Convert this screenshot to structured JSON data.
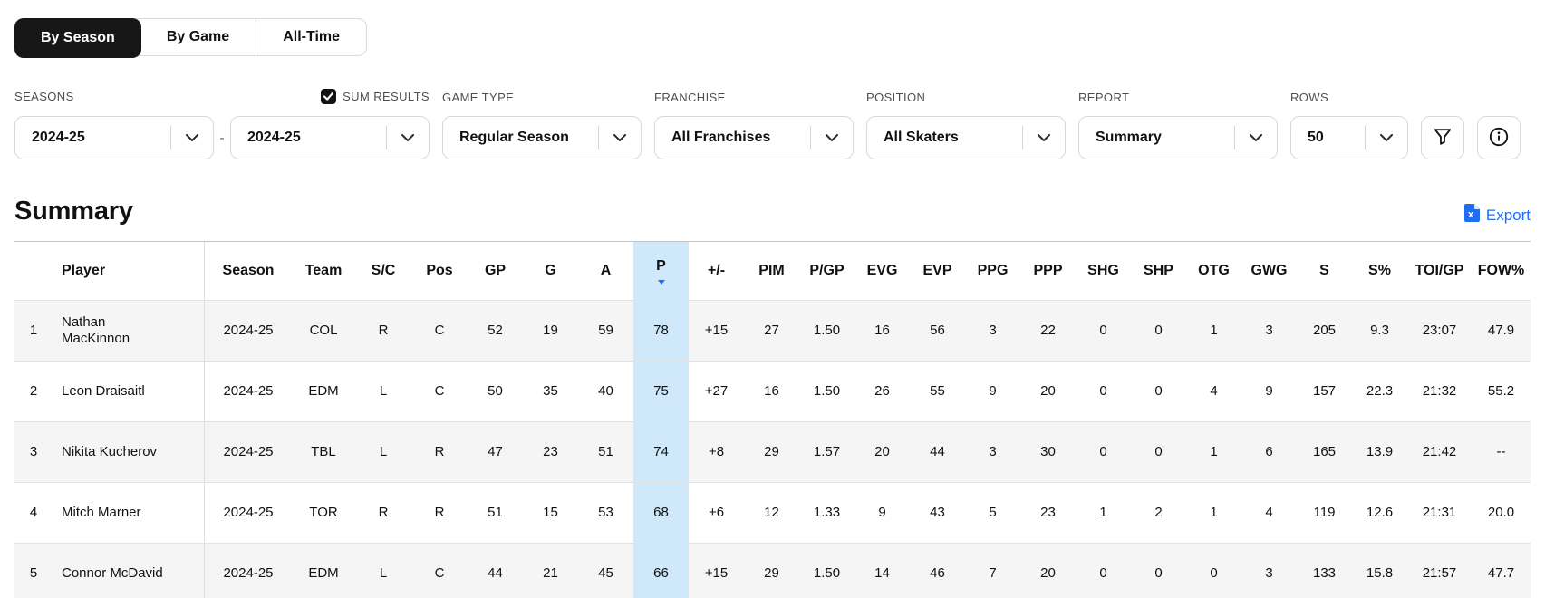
{
  "tabs": [
    {
      "label": "By Season",
      "active": true
    },
    {
      "label": "By Game",
      "active": false
    },
    {
      "label": "All-Time",
      "active": false
    }
  ],
  "filters": {
    "seasons": {
      "label": "SEASONS",
      "from": "2024-25",
      "to": "2024-25",
      "separator": "-"
    },
    "sum_results": {
      "label": "SUM RESULTS",
      "checked": true
    },
    "game_type": {
      "label": "GAME TYPE",
      "value": "Regular Season"
    },
    "franchise": {
      "label": "FRANCHISE",
      "value": "All Franchises"
    },
    "position": {
      "label": "POSITION",
      "value": "All Skaters"
    },
    "report": {
      "label": "REPORT",
      "value": "Summary"
    },
    "rows": {
      "label": "ROWS",
      "value": "50"
    }
  },
  "summary": {
    "title": "Summary",
    "export_label": "Export"
  },
  "table": {
    "columns": [
      "",
      "Player",
      "Season",
      "Team",
      "S/C",
      "Pos",
      "GP",
      "G",
      "A",
      "P",
      "+/-",
      "PIM",
      "P/GP",
      "EVG",
      "EVP",
      "PPG",
      "PPP",
      "SHG",
      "SHP",
      "OTG",
      "GWG",
      "S",
      "S%",
      "TOI/GP",
      "FOW%"
    ],
    "sorted_column": "P",
    "sort_direction": "desc",
    "rows": [
      [
        "1",
        "Nathan MacKinnon",
        "2024-25",
        "COL",
        "R",
        "C",
        "52",
        "19",
        "59",
        "78",
        "+15",
        "27",
        "1.50",
        "16",
        "56",
        "3",
        "22",
        "0",
        "0",
        "1",
        "3",
        "205",
        "9.3",
        "23:07",
        "47.9"
      ],
      [
        "2",
        "Leon Draisaitl",
        "2024-25",
        "EDM",
        "L",
        "C",
        "50",
        "35",
        "40",
        "75",
        "+27",
        "16",
        "1.50",
        "26",
        "55",
        "9",
        "20",
        "0",
        "0",
        "4",
        "9",
        "157",
        "22.3",
        "21:32",
        "55.2"
      ],
      [
        "3",
        "Nikita Kucherov",
        "2024-25",
        "TBL",
        "L",
        "R",
        "47",
        "23",
        "51",
        "74",
        "+8",
        "29",
        "1.57",
        "20",
        "44",
        "3",
        "30",
        "0",
        "0",
        "1",
        "6",
        "165",
        "13.9",
        "21:42",
        "--"
      ],
      [
        "4",
        "Mitch Marner",
        "2024-25",
        "TOR",
        "R",
        "R",
        "51",
        "15",
        "53",
        "68",
        "+6",
        "12",
        "1.33",
        "9",
        "43",
        "5",
        "23",
        "1",
        "2",
        "1",
        "4",
        "119",
        "12.6",
        "21:31",
        "20.0"
      ],
      [
        "5",
        "Connor McDavid",
        "2024-25",
        "EDM",
        "L",
        "C",
        "44",
        "21",
        "45",
        "66",
        "+15",
        "29",
        "1.50",
        "14",
        "46",
        "7",
        "20",
        "0",
        "0",
        "0",
        "3",
        "133",
        "15.8",
        "21:57",
        "47.7"
      ]
    ]
  },
  "colors": {
    "accent_blue": "#1f6ef2",
    "column_highlight": "#cfe9fa",
    "active_tab_bg": "#171717",
    "stripe": "#f5f5f5"
  }
}
